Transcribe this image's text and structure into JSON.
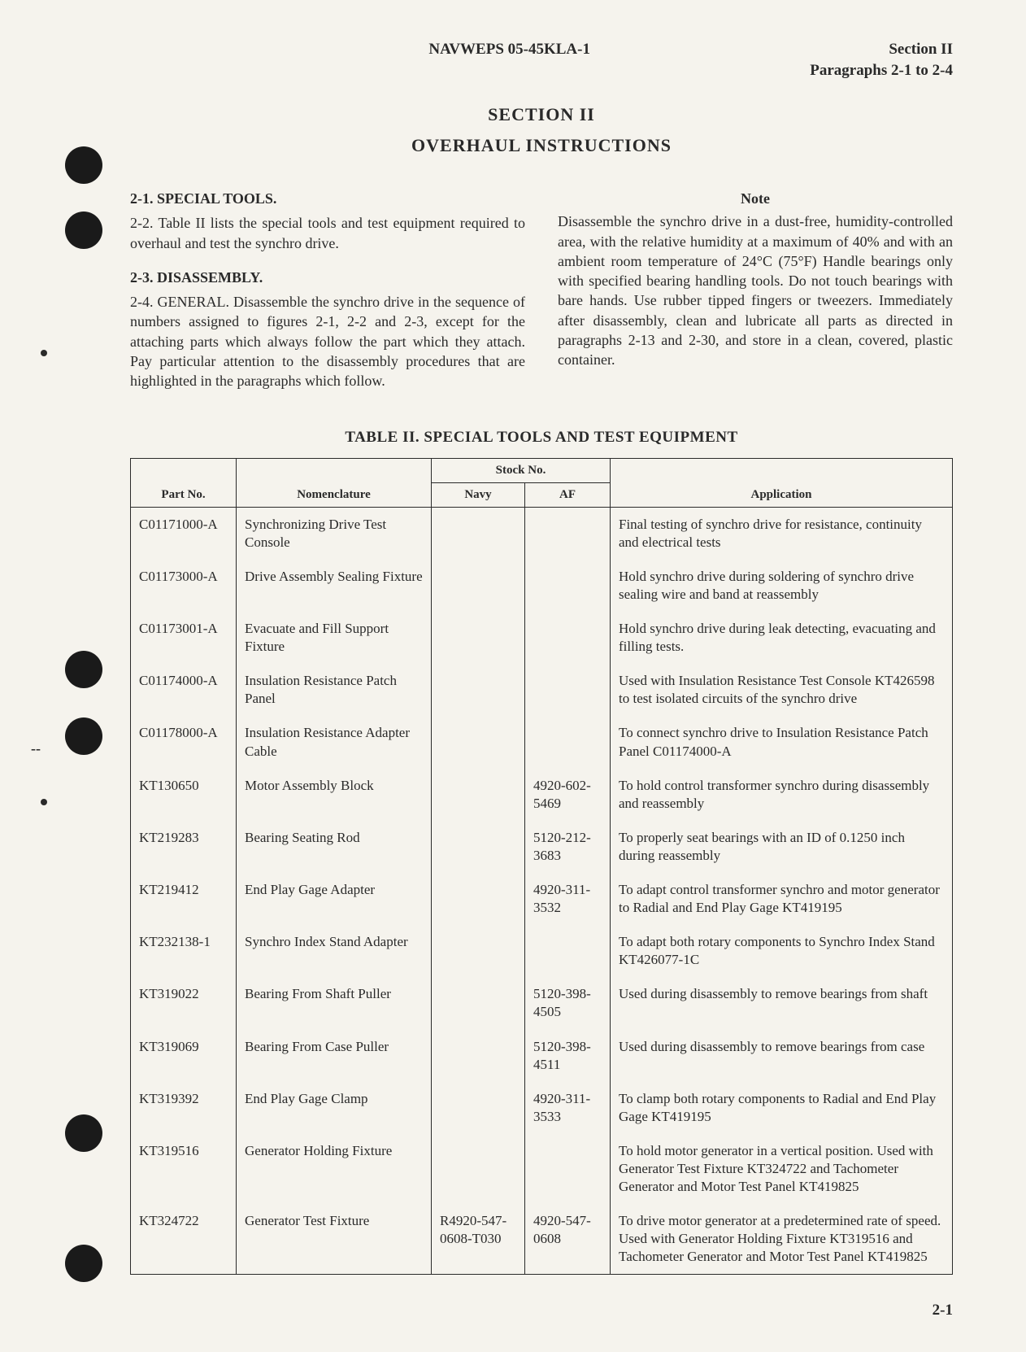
{
  "header": {
    "doc_id": "NAVWEPS 05-45KLA-1",
    "section": "Section II",
    "paragraphs": "Paragraphs 2-1 to 2-4"
  },
  "titles": {
    "section": "SECTION II",
    "subtitle": "OVERHAUL INSTRUCTIONS",
    "table": "TABLE II. SPECIAL TOOLS AND TEST EQUIPMENT"
  },
  "left_col": {
    "h1": "2-1. SPECIAL TOOLS.",
    "p1": "2-2. Table II lists the special tools and test equipment required to overhaul and test the synchro drive.",
    "h2": "2-3. DISASSEMBLY.",
    "p2": "2-4. GENERAL. Disassemble the synchro drive in the sequence of numbers assigned to figures 2-1, 2-2 and 2-3, except for the attaching parts which always follow the part which they attach. Pay particular attention to the disassembly procedures that are highlighted in the paragraphs which follow."
  },
  "right_col": {
    "note_heading": "Note",
    "note_body": "Disassemble the synchro drive in a dust-free, humidity-controlled area, with the relative humidity at a maximum of 40% and with an ambient room temperature of 24°C (75°F) Handle bearings only with specified bearing handling tools. Do not touch bearings with bare hands. Use rubber tipped fingers or tweezers. Immediately after disassembly, clean and lubricate all parts as directed in paragraphs 2-13 and 2-30, and store in a clean, covered, plastic container."
  },
  "table": {
    "headers": {
      "part": "Part No.",
      "nomen": "Nomenclature",
      "stock": "Stock No.",
      "navy": "Navy",
      "af": "AF",
      "app": "Application"
    },
    "rows": [
      {
        "part": "C01171000-A",
        "nomen": "Synchronizing Drive Test Console",
        "navy": "",
        "af": "",
        "app": "Final testing of synchro drive for resistance, continuity and electrical tests"
      },
      {
        "part": "C01173000-A",
        "nomen": "Drive Assembly Sealing Fixture",
        "navy": "",
        "af": "",
        "app": "Hold synchro drive during soldering of synchro drive sealing wire and band at reassembly"
      },
      {
        "part": "C01173001-A",
        "nomen": "Evacuate and Fill Support Fixture",
        "navy": "",
        "af": "",
        "app": "Hold synchro drive during leak detecting, evacuating and filling tests."
      },
      {
        "part": "C01174000-A",
        "nomen": "Insulation Resistance Patch Panel",
        "navy": "",
        "af": "",
        "app": "Used with Insulation Resistance Test Console KT426598 to test isolated circuits of the synchro drive"
      },
      {
        "part": "C01178000-A",
        "nomen": "Insulation Resistance Adapter Cable",
        "navy": "",
        "af": "",
        "app": "To connect synchro drive to Insulation Resistance Patch Panel C01174000-A"
      },
      {
        "part": "KT130650",
        "nomen": "Motor Assembly Block",
        "navy": "",
        "af": "4920-602-5469",
        "app": "To hold control transformer synchro during disassembly and reassembly"
      },
      {
        "part": "KT219283",
        "nomen": "Bearing Seating Rod",
        "navy": "",
        "af": "5120-212-3683",
        "app": "To properly seat bearings with an ID of 0.1250 inch during reassembly"
      },
      {
        "part": "KT219412",
        "nomen": "End Play Gage Adapter",
        "navy": "",
        "af": "4920-311-3532",
        "app": "To adapt control transformer synchro and motor generator to Radial and End Play Gage KT419195"
      },
      {
        "part": "KT232138-1",
        "nomen": "Synchro Index Stand Adapter",
        "navy": "",
        "af": "",
        "app": "To adapt both rotary components to Synchro Index Stand KT426077-1C"
      },
      {
        "part": "KT319022",
        "nomen": "Bearing From Shaft Puller",
        "navy": "",
        "af": "5120-398-4505",
        "app": "Used during disassembly to remove bearings from shaft"
      },
      {
        "part": "KT319069",
        "nomen": "Bearing From Case Puller",
        "navy": "",
        "af": "5120-398-4511",
        "app": "Used during disassembly to remove bearings from case"
      },
      {
        "part": "KT319392",
        "nomen": "End Play Gage Clamp",
        "navy": "",
        "af": "4920-311-3533",
        "app": "To clamp both rotary components to Radial and End Play Gage KT419195"
      },
      {
        "part": "KT319516",
        "nomen": "Generator Holding Fixture",
        "navy": "",
        "af": "",
        "app": "To hold motor generator in a vertical position. Used with Generator Test Fixture KT324722 and Tachometer Generator and Motor Test Panel KT419825"
      },
      {
        "part": "KT324722",
        "nomen": "Generator Test Fixture",
        "navy": "R4920-547-0608-T030",
        "af": "4920-547-0608",
        "app": "To drive motor generator at a predetermined rate of speed. Used with Generator Holding Fixture KT319516 and Tachometer Generator and Motor Test Panel KT419825"
      }
    ]
  },
  "page_num": "2-1"
}
